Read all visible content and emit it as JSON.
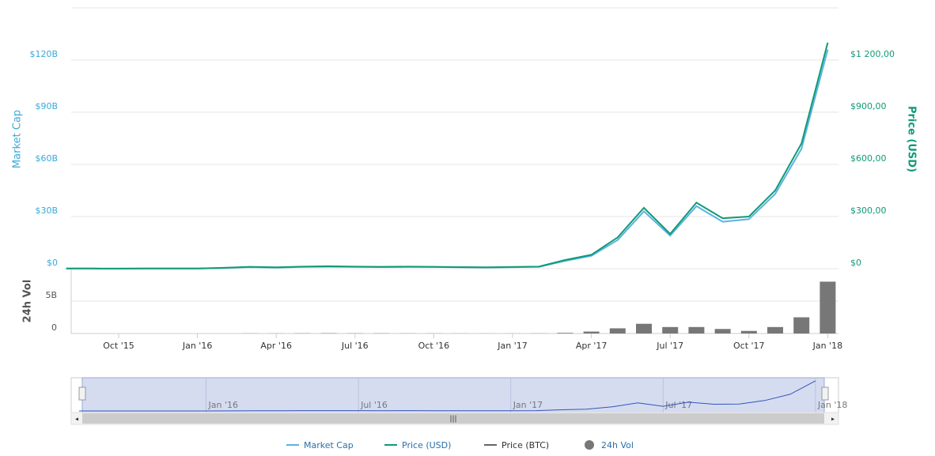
{
  "chart_data": {
    "type": "line",
    "x": [
      "2015-08",
      "2015-09",
      "2015-10",
      "2015-11",
      "2015-12",
      "2016-01",
      "2016-02",
      "2016-03",
      "2016-04",
      "2016-05",
      "2016-06",
      "2016-07",
      "2016-08",
      "2016-09",
      "2016-10",
      "2016-11",
      "2016-12",
      "2017-01",
      "2017-02",
      "2017-03",
      "2017-04",
      "2017-05",
      "2017-06",
      "2017-07",
      "2017-08",
      "2017-09",
      "2017-10",
      "2017-11",
      "2017-12",
      "2018-01"
    ],
    "xticks": [
      {
        "value": "2015-10",
        "label": "Oct '15"
      },
      {
        "value": "2016-01",
        "label": "Jan '16"
      },
      {
        "value": "2016-04",
        "label": "Apr '16"
      },
      {
        "value": "2016-07",
        "label": "Jul '16"
      },
      {
        "value": "2016-10",
        "label": "Oct '16"
      },
      {
        "value": "2017-01",
        "label": "Jan '17"
      },
      {
        "value": "2017-04",
        "label": "Apr '17"
      },
      {
        "value": "2017-07",
        "label": "Jul '17"
      },
      {
        "value": "2017-10",
        "label": "Oct '17"
      },
      {
        "value": "2018-01",
        "label": "Jan '18"
      }
    ],
    "series": [
      {
        "name": "Market Cap",
        "color": "#5cb3e0",
        "axis": "y",
        "values": [
          0.07,
          0.07,
          0.05,
          0.07,
          0.07,
          0.08,
          0.4,
          0.9,
          0.65,
          1.0,
          1.15,
          1.0,
          0.9,
          1.0,
          0.95,
          0.8,
          0.7,
          0.87,
          1.1,
          4.5,
          7.4,
          16.5,
          33,
          19,
          36,
          27,
          28.5,
          43,
          69,
          126
        ]
      },
      {
        "name": "Price (USD)",
        "color": "#109a78",
        "axis": "y2",
        "values": [
          1,
          0.9,
          0.6,
          0.9,
          0.9,
          1,
          5,
          11,
          8,
          12,
          14,
          12,
          11,
          12,
          11,
          9,
          8,
          10,
          12,
          50,
          80,
          180,
          350,
          200,
          380,
          290,
          300,
          450,
          720,
          1300
        ]
      }
    ],
    "ylabel": "Market Cap",
    "y2label": "Price (USD)",
    "ylim": [
      0,
      150
    ],
    "yticks": [
      {
        "value": 0,
        "label": "$0"
      },
      {
        "value": 30,
        "label": "$30B"
      },
      {
        "value": 60,
        "label": "$60B"
      },
      {
        "value": 90,
        "label": "$90B"
      },
      {
        "value": 120,
        "label": "$120B"
      }
    ],
    "y2lim": [
      0,
      1500
    ],
    "y2ticks": [
      {
        "value": 0,
        "label": "$0"
      },
      {
        "value": 300,
        "label": "$300,00"
      },
      {
        "value": 600,
        "label": "$600,00"
      },
      {
        "value": 900,
        "label": "$900,00"
      },
      {
        "value": 1200,
        "label": "$1 200,00"
      }
    ],
    "grid": true,
    "volume": {
      "label": "24h Vol",
      "name": "24h Vol",
      "color": "#777777",
      "ylim": [
        0,
        10
      ],
      "yticks": [
        0,
        {
          "value": 5,
          "label": "5B"
        }
      ],
      "values": [
        0,
        0,
        0,
        0,
        0,
        0,
        0,
        0.02,
        0.02,
        0.03,
        0.05,
        0.03,
        0.03,
        0.02,
        0.02,
        0.01,
        0.01,
        0.01,
        0.02,
        0.1,
        0.3,
        0.8,
        1.5,
        1.0,
        1.0,
        0.7,
        0.4,
        1.0,
        2.5,
        8
      ]
    },
    "extra_legend": [
      {
        "name": "Price (BTC)",
        "color": "#666666"
      }
    ],
    "navigator_xticks": [
      {
        "value": "2016-01",
        "label": "Jan '16"
      },
      {
        "value": "2016-07",
        "label": "Jul '16"
      },
      {
        "value": "2017-01",
        "label": "Jan '17"
      },
      {
        "value": "2017-07",
        "label": "Jul '17"
      },
      {
        "value": "2018-01",
        "label": "Jan '18"
      }
    ]
  }
}
